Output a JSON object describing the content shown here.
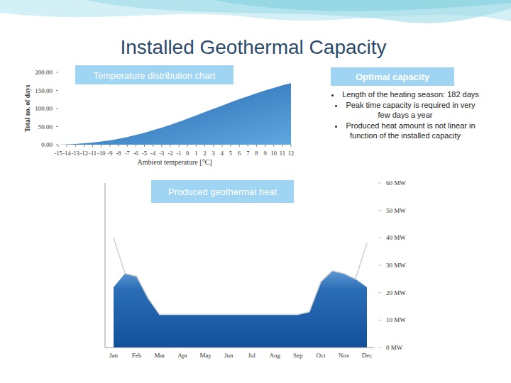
{
  "title": "Installed Geothermal Capacity",
  "optimal_capacity": {
    "heading": "Optimal capacity",
    "bullets": [
      "Length of the heating season: 182 days",
      "Peak time capacity is required in very few days a year",
      "Produced heat amount is not linear in function of the installed capacity"
    ]
  },
  "chart_data": [
    {
      "type": "area",
      "title": "Temperature distribution chart",
      "xlabel": "Ambient temperature [°C]",
      "ylabel": "Total no. of days",
      "x": [
        -15,
        -14,
        -13,
        -12,
        -11,
        -10,
        -9,
        -8,
        -7,
        -6,
        -5,
        -4,
        -3,
        -2,
        -1,
        0,
        1,
        2,
        3,
        4,
        5,
        6,
        7,
        8,
        9,
        10,
        11,
        12
      ],
      "values": [
        0,
        1,
        2,
        4,
        6,
        9,
        12,
        16,
        21,
        27,
        33,
        40,
        47,
        55,
        63,
        72,
        81,
        90,
        99,
        108,
        117,
        126,
        134,
        142,
        150,
        157,
        164,
        170
      ],
      "color": "#1f5fa8",
      "xlim": [
        -15,
        12
      ],
      "ylim": [
        0,
        200
      ],
      "xticks": [
        -15,
        -14,
        -13,
        -12,
        -11,
        -10,
        -9,
        -8,
        -7,
        -6,
        -5,
        -4,
        -3,
        -2,
        -1,
        0,
        1,
        2,
        3,
        4,
        5,
        6,
        7,
        8,
        9,
        10,
        11,
        12
      ],
      "yticks": [
        {
          "value": 0,
          "label": "0.00"
        },
        {
          "value": 50,
          "label": "50.00"
        },
        {
          "value": 100,
          "label": "100.00"
        },
        {
          "value": 150,
          "label": "150.00"
        },
        {
          "value": 200,
          "label": "200.00"
        }
      ],
      "grid": false
    },
    {
      "type": "area",
      "title": "Produced geothermal heat",
      "categories": [
        "Jan",
        null,
        "Feb",
        null,
        "Mar",
        null,
        "Apr",
        null,
        "May",
        null,
        "Jun",
        null,
        "Jul",
        null,
        "Aug",
        null,
        "Sep",
        null,
        "Oct",
        null,
        "Nov",
        null,
        "Dec"
      ],
      "series": [
        {
          "type": "area",
          "color": "#2a6db5",
          "values": [
            22,
            27,
            26,
            18,
            12,
            12,
            12,
            12,
            12,
            12,
            12,
            12,
            12,
            12,
            12,
            12,
            12,
            13,
            24,
            28,
            27,
            25,
            22
          ]
        },
        {
          "type": "line",
          "color": "#d0d0d0",
          "values": [
            40,
            27,
            26,
            18,
            12,
            12,
            12,
            12,
            12,
            12,
            12,
            12,
            12,
            12,
            12,
            12,
            12,
            13,
            24,
            28,
            27,
            25,
            38
          ]
        }
      ],
      "ylim": [
        0,
        60
      ],
      "yticks": [
        {
          "value": 0,
          "label": "0 MW"
        },
        {
          "value": 10,
          "label": "10 MW"
        },
        {
          "value": 20,
          "label": "20 MW"
        },
        {
          "value": 30,
          "label": "30 MW"
        },
        {
          "value": 40,
          "label": "40 MW"
        },
        {
          "value": 50,
          "label": "50 MW"
        },
        {
          "value": 60,
          "label": "60 MW"
        }
      ],
      "grid": false
    }
  ]
}
